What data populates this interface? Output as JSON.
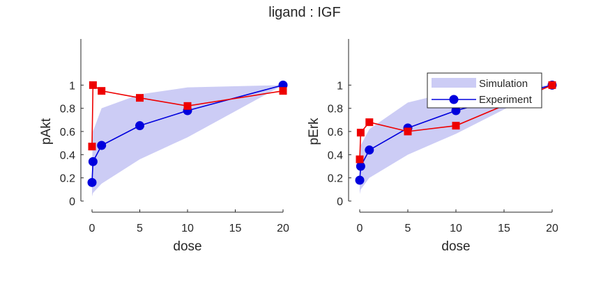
{
  "figure": {
    "title": "ligand : IGF"
  },
  "colors": {
    "simulation_band": "#ccccf5",
    "experiment": "#0000dd",
    "other_series": "#ee0000",
    "axis": "#262626"
  },
  "chart_data": [
    {
      "type": "line",
      "title": "",
      "xlabel": "dose",
      "ylabel": "pAkt",
      "xlim": [
        0,
        20
      ],
      "ylim": [
        0,
        1.2
      ],
      "xticks": [
        "0",
        "5",
        "10",
        "15",
        "20"
      ],
      "yticks": [
        "0",
        "0.2",
        "0.4",
        "0.6",
        "0.8",
        "1"
      ],
      "grid": false,
      "legend": null,
      "band": {
        "name": "Simulation",
        "x": [
          0,
          0.1,
          1,
          5,
          10,
          20
        ],
        "lower": [
          0.04,
          0.07,
          0.15,
          0.36,
          0.55,
          1.0
        ],
        "upper": [
          0.3,
          0.6,
          0.8,
          0.92,
          0.98,
          1.0
        ]
      },
      "series": [
        {
          "name": "Experiment",
          "marker": "circle",
          "x": [
            0,
            0.1,
            1,
            5,
            10,
            20
          ],
          "values": [
            0.16,
            0.34,
            0.48,
            0.65,
            0.78,
            1.0
          ]
        },
        {
          "marker": "square",
          "x": [
            0,
            0.1,
            1,
            5,
            10,
            20
          ],
          "values": [
            0.47,
            1.0,
            0.95,
            0.89,
            0.82,
            0.95
          ]
        }
      ]
    },
    {
      "type": "line",
      "title": "",
      "xlabel": "dose",
      "ylabel": "pErk",
      "xlim": [
        0,
        20
      ],
      "ylim": [
        0,
        1.2
      ],
      "xticks": [
        "0",
        "5",
        "10",
        "15",
        "20"
      ],
      "yticks": [
        "0",
        "0.2",
        "0.4",
        "0.6",
        "0.8",
        "1"
      ],
      "grid": false,
      "legend": {
        "position": "top-right",
        "entries": [
          "Simulation",
          "Experiment"
        ]
      },
      "band": {
        "name": "Simulation",
        "x": [
          0,
          0.1,
          1,
          5,
          10,
          20
        ],
        "lower": [
          0.06,
          0.1,
          0.2,
          0.4,
          0.58,
          1.0
        ],
        "upper": [
          0.3,
          0.48,
          0.62,
          0.85,
          0.95,
          1.0
        ]
      },
      "series": [
        {
          "name": "Experiment",
          "marker": "circle",
          "x": [
            0,
            0.1,
            1,
            5,
            10,
            20
          ],
          "values": [
            0.18,
            0.3,
            0.44,
            0.63,
            0.78,
            1.0
          ]
        },
        {
          "marker": "square",
          "x": [
            0,
            0.1,
            1,
            5,
            10,
            20
          ],
          "values": [
            0.36,
            0.59,
            0.68,
            0.6,
            0.65,
            1.0
          ]
        }
      ]
    }
  ]
}
